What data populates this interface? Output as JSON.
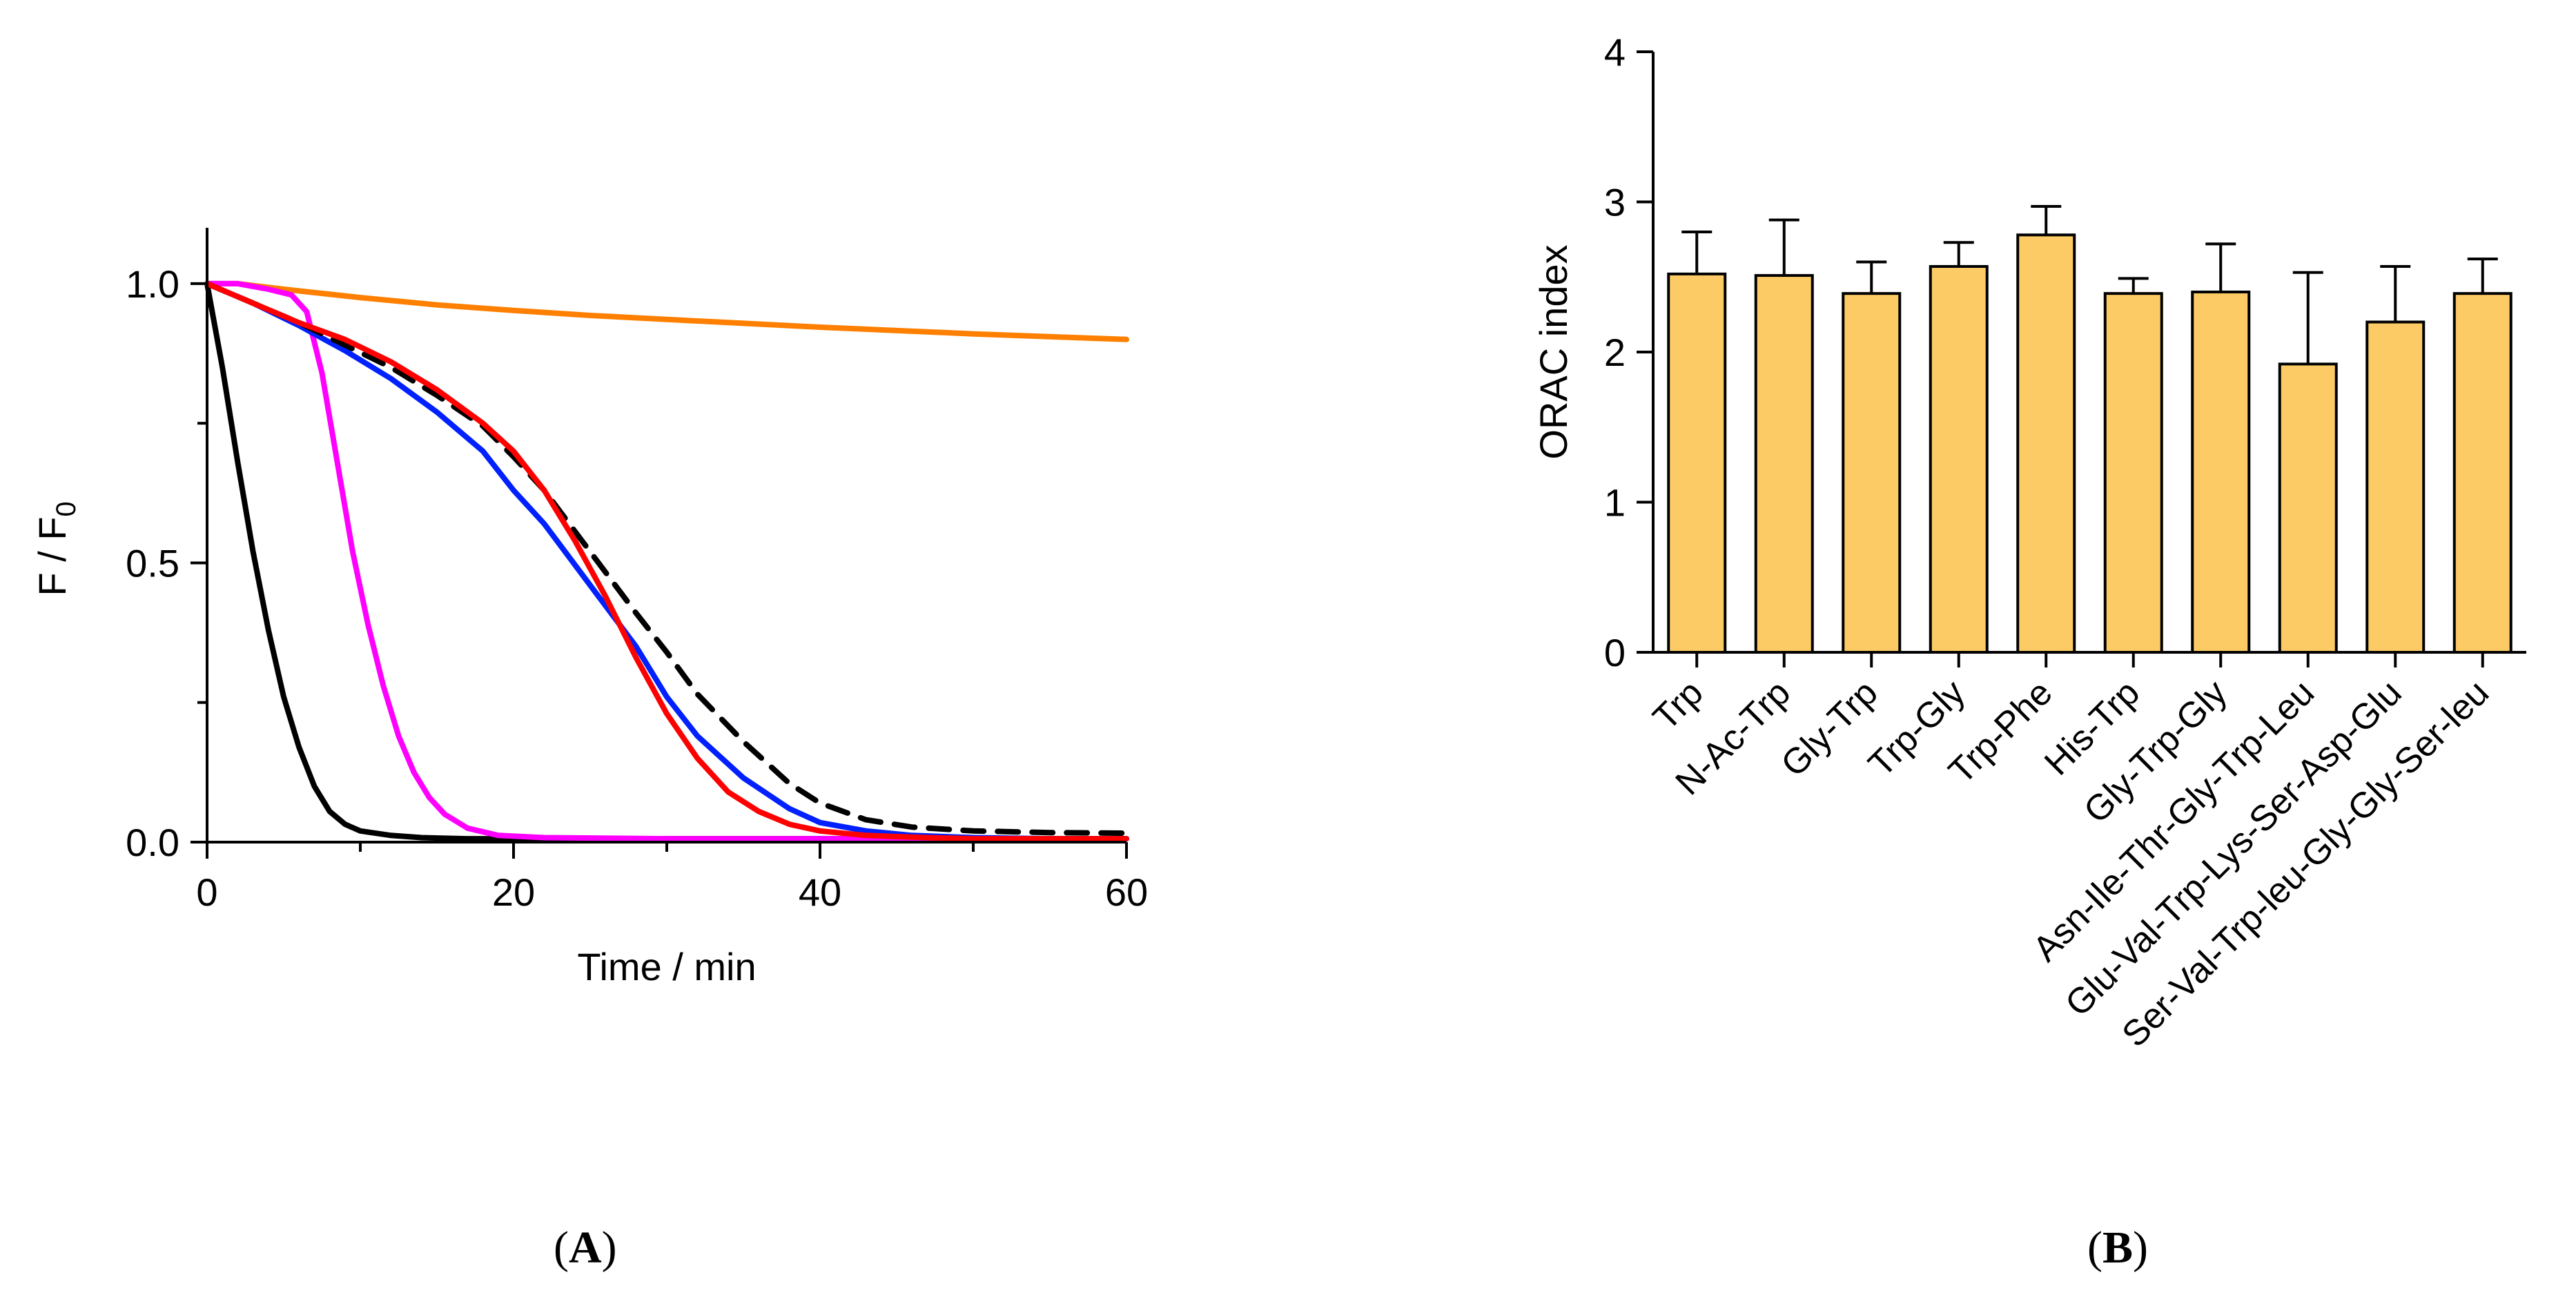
{
  "chart_data": [
    {
      "panel": "A",
      "type": "line",
      "xlabel": "Time / min",
      "ylabel_main": "F / F",
      "ylabel_sub": "0",
      "xlim": [
        0,
        60
      ],
      "ylim": [
        0,
        1.1
      ],
      "xticks": [
        0,
        20,
        40,
        60
      ],
      "xtick_labels": [
        "0",
        "20",
        "40",
        "60"
      ],
      "yticks": [
        0,
        0.5,
        1.0
      ],
      "ytick_labels": [
        "0.0",
        "0.5",
        "1.0"
      ],
      "y_minor_ticks": [
        0.25,
        0.75
      ],
      "x_minor_ticks": [
        10,
        30,
        50
      ],
      "series": [
        {
          "name": "orange",
          "color": "#ff7f00",
          "dash": false,
          "x": [
            0,
            2,
            5,
            10,
            15,
            20,
            25,
            30,
            35,
            40,
            45,
            50,
            55,
            60
          ],
          "y": [
            1.0,
            1.0,
            0.99,
            0.975,
            0.962,
            0.952,
            0.943,
            0.936,
            0.929,
            0.922,
            0.916,
            0.91,
            0.905,
            0.9
          ]
        },
        {
          "name": "black-solid",
          "color": "#000000",
          "dash": false,
          "x": [
            0,
            1,
            2,
            3,
            4,
            5,
            6,
            7,
            8,
            9,
            10,
            12,
            14,
            17,
            20,
            30,
            40,
            50,
            60
          ],
          "y": [
            1.0,
            0.85,
            0.68,
            0.52,
            0.38,
            0.26,
            0.17,
            0.1,
            0.055,
            0.032,
            0.02,
            0.012,
            0.008,
            0.006,
            0.006,
            0.006,
            0.006,
            0.006,
            0.006
          ]
        },
        {
          "name": "magenta",
          "color": "#ff00ff",
          "dash": false,
          "x": [
            0,
            2,
            4,
            5.5,
            6.5,
            7.5,
            8.5,
            9.5,
            10.5,
            11.5,
            12.5,
            13.5,
            14.5,
            15.5,
            17,
            19,
            22,
            30,
            40,
            50,
            60
          ],
          "y": [
            1.0,
            1.0,
            0.99,
            0.98,
            0.95,
            0.84,
            0.68,
            0.52,
            0.39,
            0.28,
            0.19,
            0.125,
            0.08,
            0.05,
            0.025,
            0.012,
            0.008,
            0.006,
            0.006,
            0.006,
            0.006
          ]
        },
        {
          "name": "blue",
          "color": "#0020ff",
          "dash": false,
          "x": [
            0,
            3,
            6,
            9,
            12,
            15,
            18,
            20,
            22,
            25,
            28,
            30,
            32,
            35,
            38,
            40,
            43,
            46,
            50,
            55,
            60
          ],
          "y": [
            1.0,
            0.965,
            0.925,
            0.88,
            0.83,
            0.77,
            0.7,
            0.63,
            0.57,
            0.46,
            0.35,
            0.26,
            0.19,
            0.115,
            0.06,
            0.035,
            0.02,
            0.012,
            0.008,
            0.006,
            0.006
          ]
        },
        {
          "name": "black-dashed",
          "color": "#000000",
          "dash": true,
          "x": [
            0,
            3,
            6,
            9,
            12,
            15,
            18,
            20,
            22,
            25,
            28,
            30,
            32,
            35,
            38,
            40,
            43,
            46,
            50,
            55,
            60
          ],
          "y": [
            1.0,
            0.965,
            0.93,
            0.89,
            0.85,
            0.8,
            0.745,
            0.69,
            0.63,
            0.52,
            0.41,
            0.34,
            0.265,
            0.18,
            0.105,
            0.07,
            0.04,
            0.027,
            0.02,
            0.017,
            0.016
          ]
        },
        {
          "name": "red",
          "color": "#ff0000",
          "dash": false,
          "x": [
            0,
            3,
            6,
            9,
            12,
            15,
            18,
            20,
            22,
            24,
            26,
            28,
            30,
            32,
            34,
            36,
            38,
            40,
            43,
            47,
            50,
            55,
            60
          ],
          "y": [
            1.0,
            0.965,
            0.93,
            0.9,
            0.86,
            0.81,
            0.75,
            0.7,
            0.63,
            0.54,
            0.44,
            0.33,
            0.23,
            0.15,
            0.09,
            0.055,
            0.032,
            0.02,
            0.012,
            0.008,
            0.006,
            0.006,
            0.006
          ]
        }
      ]
    },
    {
      "panel": "B",
      "type": "bar",
      "ylabel": "ORAC index",
      "ylim": [
        0,
        4
      ],
      "yticks": [
        0,
        1,
        2,
        3,
        4
      ],
      "ytick_labels": [
        "0",
        "1",
        "2",
        "3",
        "4"
      ],
      "bar_color": "#fdcb65",
      "categories": [
        "Trp",
        "N-Ac-Trp",
        "Gly-Trp",
        "Trp-Gly",
        "Trp-Phe",
        "His-Trp",
        "Gly-Trp-Gly",
        "Asn-Ile-Thr-Gly-Trp-Leu",
        "Glu-Val-Trp-Lys-Ser-Asp-Glu",
        "Ser-Val-Trp-leu-Gly-Gly-Ser-leu"
      ],
      "values": [
        2.52,
        2.51,
        2.39,
        2.57,
        2.78,
        2.39,
        2.4,
        1.92,
        2.2,
        2.39
      ],
      "errors": [
        0.28,
        0.37,
        0.21,
        0.16,
        0.19,
        0.1,
        0.32,
        0.61,
        0.37,
        0.23
      ]
    }
  ],
  "panel_labels": {
    "a": "A",
    "b": "B"
  }
}
